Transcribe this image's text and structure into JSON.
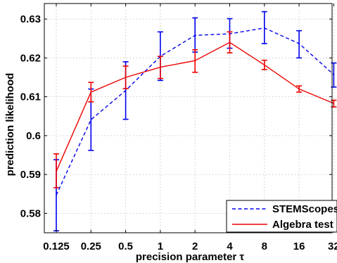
{
  "chart_data": {
    "type": "line",
    "xlabel": "precision parameter τ",
    "ylabel": "prediction likelihood",
    "categories": [
      "0.125",
      "0.25",
      "0.5",
      "1",
      "2",
      "4",
      "8",
      "16",
      "32"
    ],
    "ylim": [
      0.575,
      0.634
    ],
    "yticks": [
      "0.58",
      "0.59",
      "0.6",
      "0.61",
      "0.62",
      "0.63"
    ],
    "grid": true,
    "legend_position": "bottom-right",
    "series": [
      {
        "name": "STEMScopes",
        "color": "#0000ee",
        "line_style": "dashed",
        "values": [
          0.5847,
          0.6041,
          0.6116,
          0.6204,
          0.6258,
          0.6262,
          0.6277,
          0.6237,
          0.6157
        ],
        "err_low": [
          0.5755,
          0.5962,
          0.6042,
          0.6142,
          0.6215,
          0.6225,
          0.6237,
          0.62,
          0.6125
        ],
        "err_high": [
          0.5938,
          0.612,
          0.619,
          0.6267,
          0.6303,
          0.6301,
          0.6319,
          0.627,
          0.6187
        ]
      },
      {
        "name": "Algebra test",
        "color": "#ee0000",
        "line_style": "solid",
        "values": [
          0.5908,
          0.6112,
          0.615,
          0.6176,
          0.6193,
          0.624,
          0.6182,
          0.612,
          0.6083
        ],
        "err_low": [
          0.5866,
          0.6087,
          0.6121,
          0.6147,
          0.6163,
          0.6213,
          0.617,
          0.6112,
          0.6074
        ],
        "err_high": [
          0.5953,
          0.6137,
          0.6179,
          0.6204,
          0.6221,
          0.6267,
          0.6194,
          0.6128,
          0.6091
        ]
      }
    ]
  }
}
